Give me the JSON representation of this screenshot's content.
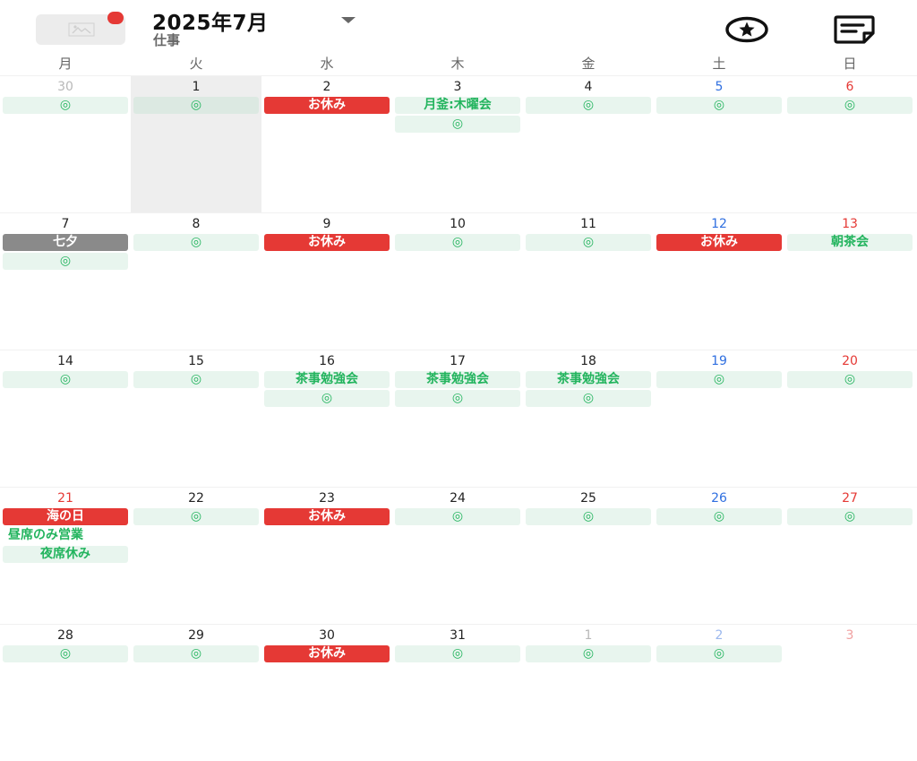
{
  "header": {
    "title": "2025年7月",
    "subtitle": "仕事",
    "star_icon": "star-circle-icon",
    "note_icon": "sticky-note-icon"
  },
  "colors": {
    "work_bg": "#e8f5ee",
    "work_text": "#23b45e",
    "holiday_bg": "#e53935",
    "gray_bg": "#8a8a8a",
    "saturday": "#2f6fe0",
    "sunday": "#e53935"
  },
  "weekdays": [
    "月",
    "火",
    "水",
    "木",
    "金",
    "土",
    "日"
  ],
  "weeks": [
    [
      {
        "date": "30",
        "dim": true,
        "events": [
          {
            "label": "◎",
            "type": "work"
          }
        ]
      },
      {
        "date": "1",
        "highlight": true,
        "events": [
          {
            "label": "◎",
            "type": "work"
          }
        ]
      },
      {
        "date": "2",
        "events": [
          {
            "label": "お休み",
            "type": "holiday"
          }
        ]
      },
      {
        "date": "3",
        "events": [
          {
            "label": "月釜:木曜会",
            "type": "work"
          },
          {
            "label": "◎",
            "type": "work"
          }
        ]
      },
      {
        "date": "4",
        "events": [
          {
            "label": "◎",
            "type": "work"
          }
        ]
      },
      {
        "date": "5",
        "weekend": "sat",
        "events": [
          {
            "label": "◎",
            "type": "work"
          }
        ]
      },
      {
        "date": "6",
        "weekend": "sun",
        "events": [
          {
            "label": "◎",
            "type": "work"
          }
        ]
      }
    ],
    [
      {
        "date": "7",
        "events": [
          {
            "label": "七夕",
            "type": "gray"
          },
          {
            "label": "◎",
            "type": "work"
          }
        ]
      },
      {
        "date": "8",
        "events": [
          {
            "label": "◎",
            "type": "work"
          }
        ]
      },
      {
        "date": "9",
        "events": [
          {
            "label": "お休み",
            "type": "holiday"
          }
        ]
      },
      {
        "date": "10",
        "events": [
          {
            "label": "◎",
            "type": "work"
          }
        ]
      },
      {
        "date": "11",
        "events": [
          {
            "label": "◎",
            "type": "work"
          }
        ]
      },
      {
        "date": "12",
        "weekend": "sat",
        "events": [
          {
            "label": "お休み",
            "type": "holiday"
          }
        ]
      },
      {
        "date": "13",
        "weekend": "sun",
        "events": [
          {
            "label": "朝茶会",
            "type": "work"
          }
        ]
      }
    ],
    [
      {
        "date": "14",
        "events": [
          {
            "label": "◎",
            "type": "work"
          }
        ]
      },
      {
        "date": "15",
        "events": [
          {
            "label": "◎",
            "type": "work"
          }
        ]
      },
      {
        "date": "16",
        "events": [
          {
            "label": "茶事勉強会",
            "type": "work"
          },
          {
            "label": "◎",
            "type": "work"
          }
        ]
      },
      {
        "date": "17",
        "events": [
          {
            "label": "茶事勉強会",
            "type": "work"
          },
          {
            "label": "◎",
            "type": "work"
          }
        ]
      },
      {
        "date": "18",
        "events": [
          {
            "label": "茶事勉強会",
            "type": "work"
          },
          {
            "label": "◎",
            "type": "work"
          }
        ]
      },
      {
        "date": "19",
        "weekend": "sat",
        "events": [
          {
            "label": "◎",
            "type": "work"
          }
        ]
      },
      {
        "date": "20",
        "weekend": "sun",
        "events": [
          {
            "label": "◎",
            "type": "work"
          }
        ]
      }
    ],
    [
      {
        "date": "21",
        "weekend": "sun",
        "events": [
          {
            "label": "海の日",
            "type": "holiday"
          },
          {
            "label": "昼席のみ営業",
            "type": "plain"
          },
          {
            "label": "夜席休み",
            "type": "work"
          }
        ]
      },
      {
        "date": "22",
        "events": [
          {
            "label": "◎",
            "type": "work"
          }
        ]
      },
      {
        "date": "23",
        "events": [
          {
            "label": "お休み",
            "type": "holiday"
          }
        ]
      },
      {
        "date": "24",
        "events": [
          {
            "label": "◎",
            "type": "work"
          }
        ]
      },
      {
        "date": "25",
        "events": [
          {
            "label": "◎",
            "type": "work"
          }
        ]
      },
      {
        "date": "26",
        "weekend": "sat",
        "events": [
          {
            "label": "◎",
            "type": "work"
          }
        ]
      },
      {
        "date": "27",
        "weekend": "sun",
        "events": [
          {
            "label": "◎",
            "type": "work"
          }
        ]
      }
    ],
    [
      {
        "date": "28",
        "events": [
          {
            "label": "◎",
            "type": "work"
          }
        ]
      },
      {
        "date": "29",
        "events": [
          {
            "label": "◎",
            "type": "work"
          }
        ]
      },
      {
        "date": "30",
        "events": [
          {
            "label": "お休み",
            "type": "holiday"
          }
        ]
      },
      {
        "date": "31",
        "events": [
          {
            "label": "◎",
            "type": "work"
          }
        ]
      },
      {
        "date": "1",
        "dim": true,
        "events": [
          {
            "label": "◎",
            "type": "work"
          }
        ]
      },
      {
        "date": "2",
        "dim": true,
        "weekend": "sat",
        "events": [
          {
            "label": "◎",
            "type": "work"
          }
        ]
      },
      {
        "date": "3",
        "dim": true,
        "weekend": "sun",
        "events": []
      }
    ]
  ]
}
